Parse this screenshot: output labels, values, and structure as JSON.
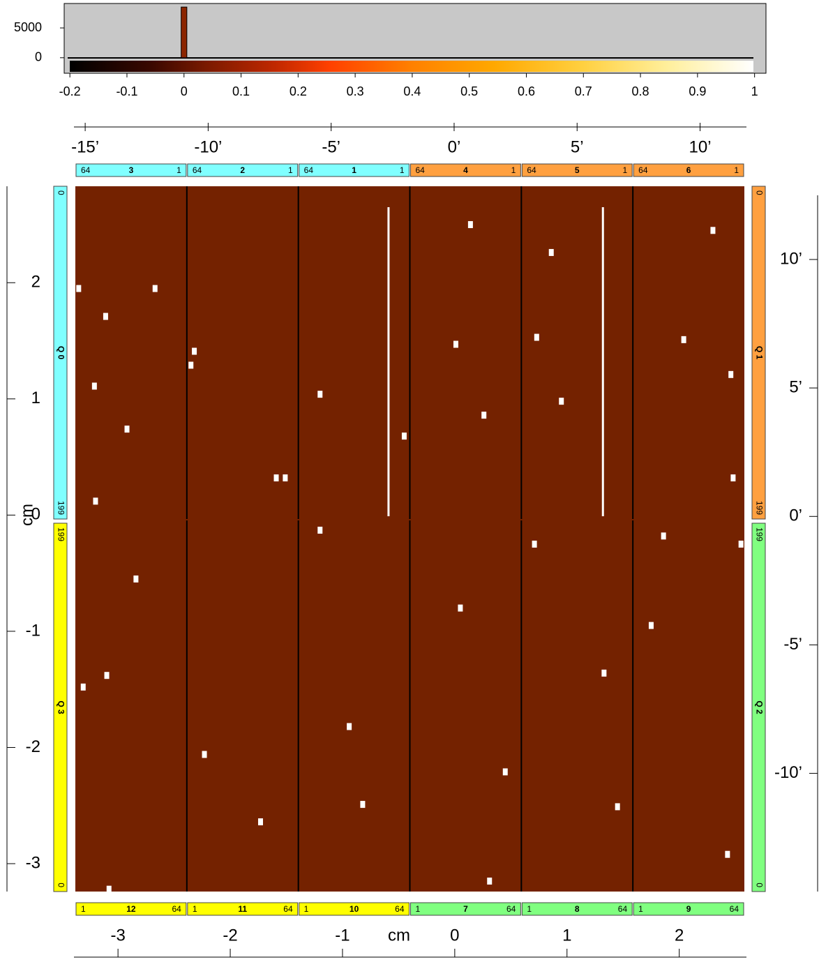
{
  "chart_data": [
    {
      "type": "histogram",
      "bins": [
        -0.005,
        0.005
      ],
      "counts": [
        8500
      ],
      "color": "#8b2500",
      "xlim": [
        -0.21,
        1.02
      ],
      "ylim": [
        -2600,
        9100
      ],
      "xticks": [
        -0.2,
        -0.1,
        0,
        0.1,
        0.2,
        0.3,
        0.4,
        0.5,
        0.6,
        0.7,
        0.8,
        0.9,
        1
      ],
      "yticks": [
        0,
        5000
      ]
    },
    {
      "type": "image",
      "color": "#742200",
      "xlabel": "cm",
      "ylabel": "cm",
      "xlim": [
        -3.38,
        2.58
      ],
      "ylim": [
        -3.24,
        2.83
      ],
      "xticks": [
        -3,
        -2,
        -1,
        0,
        1,
        2
      ],
      "yticks": [
        -3,
        -2,
        -1,
        0,
        1,
        2
      ],
      "x2lim": [
        -15.4,
        11.8
      ],
      "x2ticks": [
        {
          "value": -15,
          "label": "-15’"
        },
        {
          "value": -10,
          "label": "-10’"
        },
        {
          "value": -5,
          "label": "-5’"
        },
        {
          "value": 0,
          "label": "0’"
        },
        {
          "value": 5,
          "label": "5’"
        },
        {
          "value": 10,
          "label": "10’"
        }
      ],
      "y2lim": [
        -14.6,
        12.85
      ],
      "y2ticks": [
        {
          "value": 10,
          "label": "10’"
        },
        {
          "value": 5,
          "label": "5’"
        },
        {
          "value": 0,
          "label": "0’"
        },
        {
          "value": -5,
          "label": "-5’"
        },
        {
          "value": -10,
          "label": "-10’"
        }
      ],
      "hot_pixels": {
        "x": [
          -3.35,
          -3.11,
          -2.67,
          -3.21,
          -2.92,
          -3.2,
          -3.1,
          -3.31,
          -2.84,
          -3.08,
          -2.32,
          -2.35,
          -1.59,
          -1.51,
          -2.23,
          -1.73,
          -1.2,
          -1.2,
          -0.94,
          -0.82,
          -0.45,
          0.14,
          0.26,
          0.01,
          0.05,
          0.31,
          0.45,
          0.86,
          0.73,
          0.95,
          0.71,
          1.33,
          1.45,
          2.04,
          2.46,
          2.48,
          2.55,
          2.43,
          1.86,
          2.3,
          1.75
        ],
        "y": [
          1.95,
          1.71,
          1.95,
          1.11,
          0.74,
          0.12,
          -1.38,
          -1.48,
          -0.55,
          -3.22,
          1.41,
          1.29,
          0.32,
          0.32,
          -2.06,
          -2.64,
          1.04,
          -0.13,
          -1.82,
          -2.49,
          0.68,
          2.5,
          0.86,
          1.47,
          -0.8,
          -3.15,
          -2.21,
          2.26,
          1.53,
          0.98,
          -0.25,
          -1.36,
          -2.51,
          1.51,
          1.21,
          0.32,
          -0.25,
          -2.92,
          -0.18,
          2.45,
          -0.95
        ]
      },
      "streaks": {
        "x": [
          1.32,
          -0.59
        ],
        "y0": [
          2.65,
          2.65
        ],
        "y1": [
          -0.01,
          -0.01
        ]
      }
    }
  ],
  "top_modules": [
    {
      "id": "3",
      "left": "64",
      "right": "1",
      "color": "#80ffff"
    },
    {
      "id": "2",
      "left": "64",
      "right": "1",
      "color": "#80ffff"
    },
    {
      "id": "1",
      "left": "64",
      "right": "1",
      "color": "#80ffff"
    },
    {
      "id": "4",
      "left": "64",
      "right": "1",
      "color": "#ffa040"
    },
    {
      "id": "5",
      "left": "64",
      "right": "1",
      "color": "#ffa040"
    },
    {
      "id": "6",
      "left": "64",
      "right": "1",
      "color": "#ffa040"
    }
  ],
  "bottom_modules": [
    {
      "id": "12",
      "left": "1",
      "right": "64",
      "color": "#ffff00"
    },
    {
      "id": "11",
      "left": "1",
      "right": "64",
      "color": "#ffff00"
    },
    {
      "id": "10",
      "left": "1",
      "right": "64",
      "color": "#ffff00"
    },
    {
      "id": "7",
      "left": "1",
      "right": "64",
      "color": "#80ff80"
    },
    {
      "id": "8",
      "left": "1",
      "right": "64",
      "color": "#80ff80"
    },
    {
      "id": "9",
      "left": "1",
      "right": "64",
      "color": "#80ff80"
    }
  ],
  "quadrants": [
    {
      "name": "Q 0",
      "top": "0",
      "bottom": "199",
      "color": "#80ffff"
    },
    {
      "name": "Q 1",
      "top": "0",
      "bottom": "199",
      "color": "#ffa040"
    },
    {
      "name": "Q 2",
      "top": "199",
      "bottom": "0",
      "color": "#80ff80"
    },
    {
      "name": "Q 3",
      "top": "199",
      "bottom": "0",
      "color": "#ffff00"
    }
  ]
}
